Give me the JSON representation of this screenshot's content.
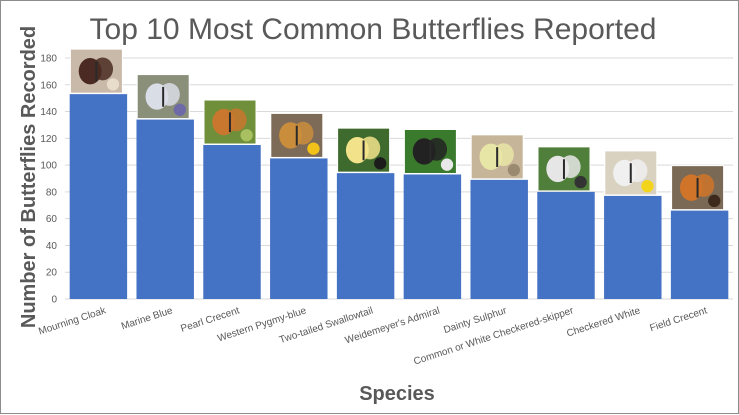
{
  "chart_data": {
    "type": "bar",
    "title": "Top 10 Most Common Butterflies Reported",
    "xlabel": "Species",
    "ylabel": "Number of Butterflies Recorded",
    "ylim": [
      0,
      180
    ],
    "yticks": [
      0,
      20,
      40,
      60,
      80,
      100,
      120,
      140,
      160,
      180
    ],
    "categories": [
      "Mourning Cloak",
      "Marine Blue",
      "Pearl Crecent",
      "Western Pygmy-blue",
      "Two-tailed Swallowtail",
      "Weidemeyer's Admiral",
      "Dainty Sulphur",
      "Common or White Checkered-skipper",
      "Checkered White",
      "Field Crecent"
    ],
    "values": [
      153,
      134,
      115,
      105,
      94,
      93,
      89,
      80,
      77,
      66
    ],
    "grid": true,
    "legend": "none",
    "bar_color": "#4472c4",
    "grid_color": "#d9d9d9",
    "photos": [
      "mourning-cloak-photo",
      "marine-blue-photo",
      "pearl-crescent-photo",
      "western-pygmy-blue-photo",
      "two-tailed-swallowtail-photo",
      "weidemeyers-admiral-photo",
      "dainty-sulphur-photo",
      "checkered-skipper-photo",
      "checkered-white-photo",
      "field-crescent-photo"
    ]
  }
}
